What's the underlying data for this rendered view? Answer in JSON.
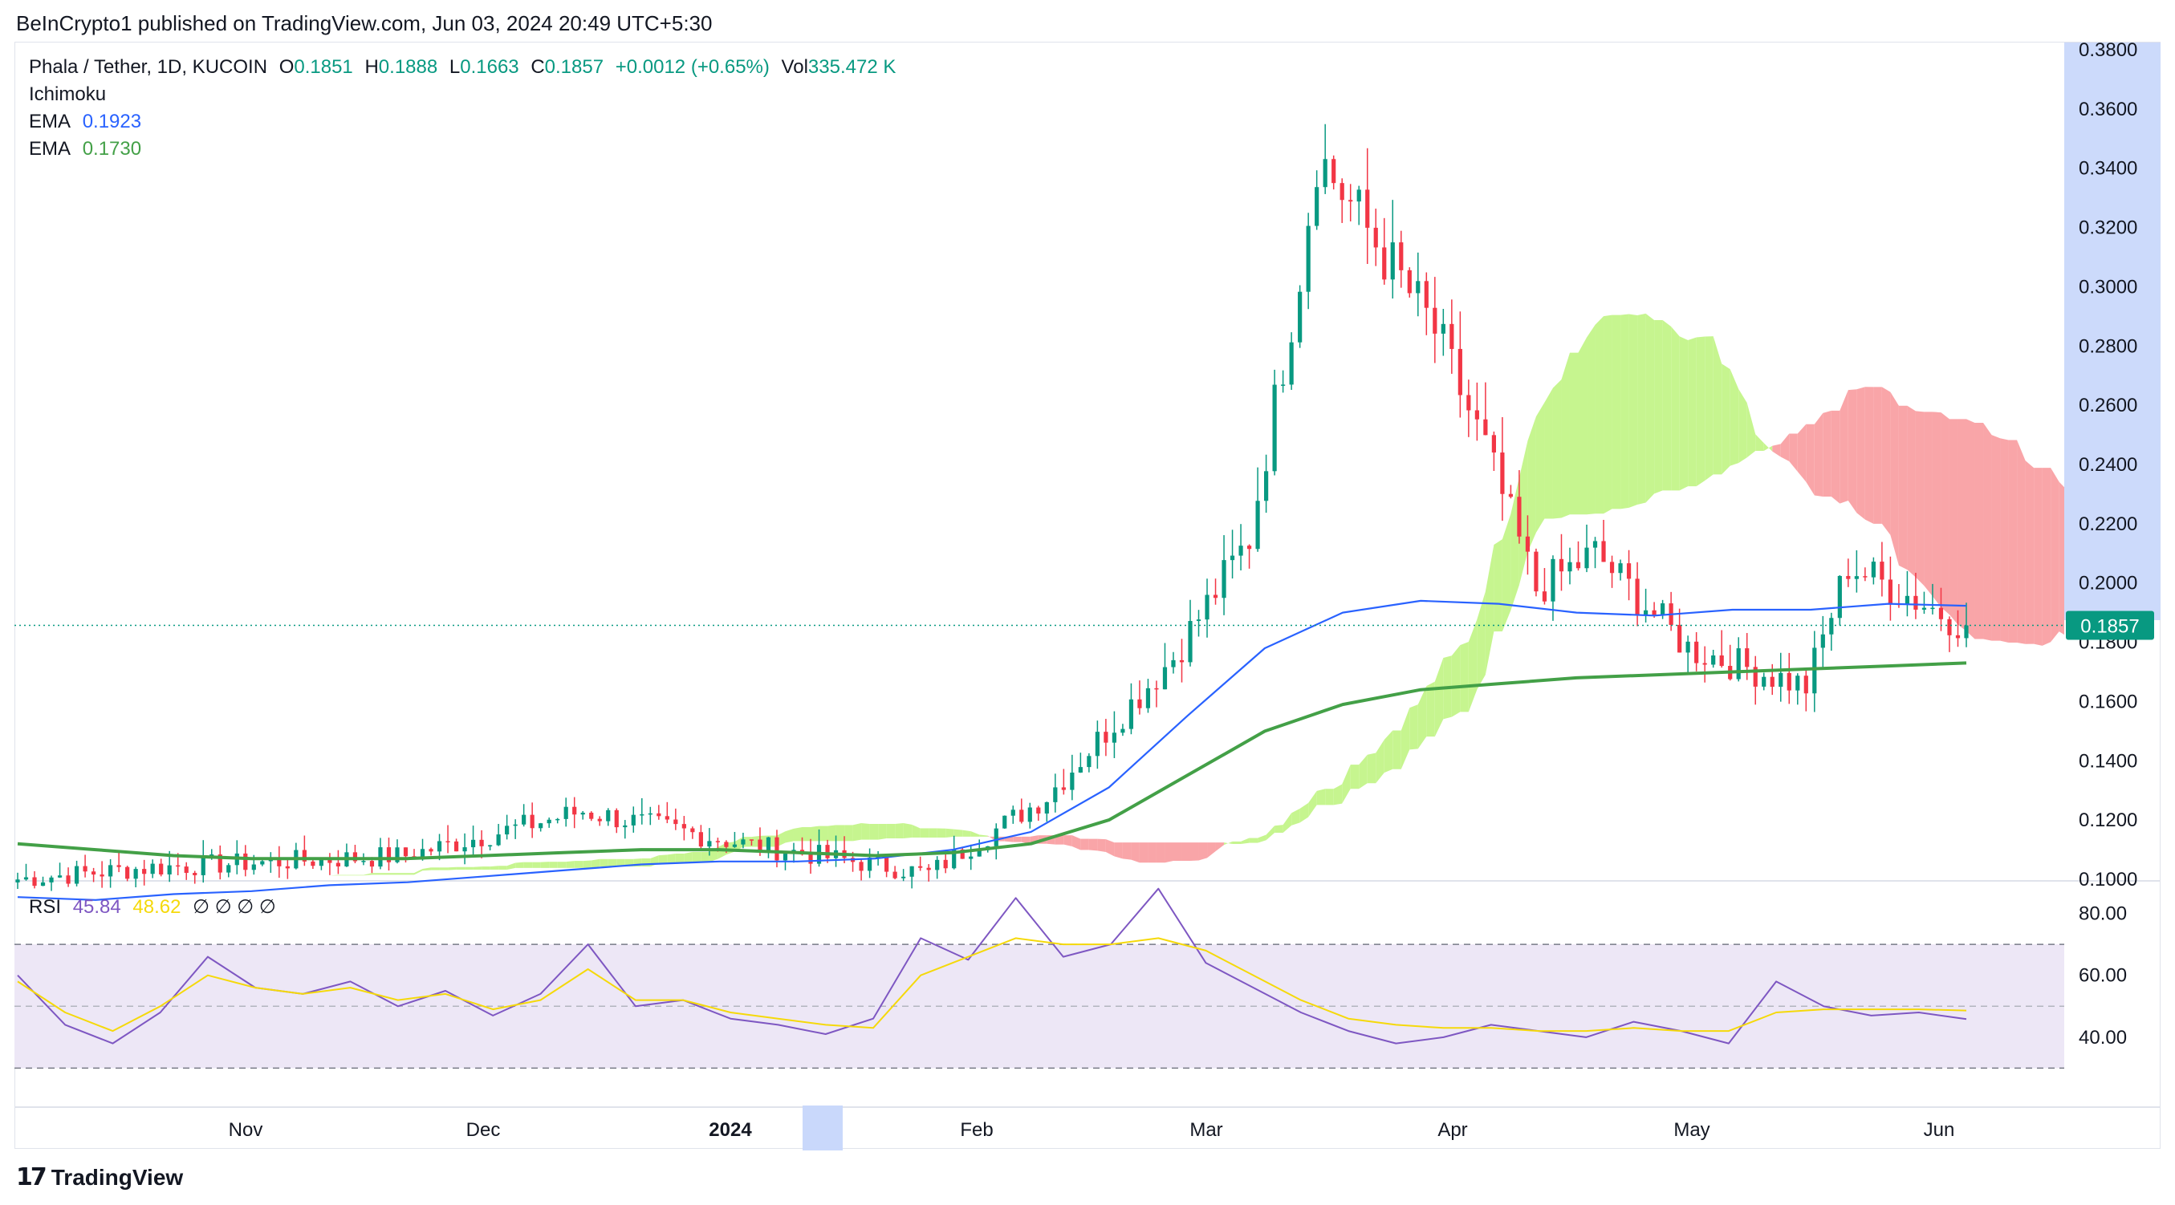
{
  "publish": {
    "text": "BeInCrypto1 published on TradingView.com, Jun 03, 2024 20:49 UTC+5:30"
  },
  "legend": {
    "symbol": "Phala / Tether, 1D, KUCOIN",
    "o_label": "O",
    "o": "0.1851",
    "h_label": "H",
    "h": "0.1888",
    "l_label": "L",
    "l": "0.1663",
    "c_label": "C",
    "c": "0.1857",
    "change": "+0.0012 (+0.65%)",
    "vol_label": "Vol",
    "vol": "335.472 K",
    "ichimoku": "Ichimoku",
    "ema1_label": "EMA",
    "ema1": "0.1923",
    "ema2_label": "EMA",
    "ema2": "0.1730"
  },
  "rsi_legend": {
    "label": "RSI",
    "rsi": "45.84",
    "ma": "48.62",
    "na": "∅ ∅ ∅ ∅"
  },
  "footer": {
    "brand": "TradingView"
  },
  "colors": {
    "up": "#089981",
    "down": "#f23645",
    "ema1": "#2962ff",
    "ema2": "#43a047",
    "cloud_bull": "#c6f58f",
    "cloud_bear": "#f9a5a8",
    "rsi": "#7e57c2",
    "rsi_ma": "#f5d90a",
    "rsi_band": "#ede7f6",
    "price_tag": "#089981",
    "axis_highlight": "#c9d8fb"
  },
  "chart_data": [
    {
      "type": "candlestick",
      "title": "Phala / Tether, 1D, KUCOIN",
      "ylim": [
        0.1,
        0.38
      ],
      "y_ticks": [
        "0.3800",
        "0.3600",
        "0.3400",
        "0.3200",
        "0.3000",
        "0.2800",
        "0.2600",
        "0.2400",
        "0.2200",
        "0.2000",
        "0.1800",
        "0.1600",
        "0.1400",
        "0.1200",
        "0.1000"
      ],
      "x_labels": [
        "Nov",
        "Dec",
        "2024",
        "Feb",
        "Mar",
        "Apr",
        "May",
        "Jun"
      ],
      "last_price": "0.1857",
      "series": [
        {
          "name": "EMA",
          "values_weekly": [
            0.094,
            0.093,
            0.095,
            0.096,
            0.098,
            0.099,
            0.101,
            0.103,
            0.105,
            0.106,
            0.106,
            0.107,
            0.11,
            0.116,
            0.131,
            0.155,
            0.178,
            0.19,
            0.194,
            0.193,
            0.19,
            0.189,
            0.191,
            0.191,
            0.193,
            0.1923
          ]
        },
        {
          "name": "EMA",
          "values_weekly": [
            0.112,
            0.11,
            0.108,
            0.107,
            0.107,
            0.107,
            0.108,
            0.109,
            0.11,
            0.11,
            0.109,
            0.108,
            0.109,
            0.112,
            0.12,
            0.135,
            0.15,
            0.159,
            0.164,
            0.166,
            0.168,
            0.169,
            0.17,
            0.171,
            0.172,
            0.173
          ]
        }
      ],
      "ohlc_key_points": [
        {
          "date": "Oct 16",
          "close": 0.1
        },
        {
          "date": "Nov 01",
          "close": 0.104
        },
        {
          "date": "Dec 01",
          "close": 0.108
        },
        {
          "date": "Dec 22",
          "close": 0.123
        },
        {
          "date": "Jan 10",
          "close": 0.112
        },
        {
          "date": "Feb 01",
          "close": 0.102
        },
        {
          "date": "Feb 15",
          "close": 0.128
        },
        {
          "date": "Mar 01",
          "close": 0.175
        },
        {
          "date": "Mar 10",
          "close": 0.215
        },
        {
          "date": "Mar 16",
          "close": 0.305
        },
        {
          "date": "Mar 18",
          "close": 0.345
        },
        {
          "date": "Mar 25",
          "close": 0.315
        },
        {
          "date": "Apr 01",
          "close": 0.285
        },
        {
          "date": "Apr 07",
          "close": 0.245
        },
        {
          "date": "Apr 13",
          "close": 0.198
        },
        {
          "date": "Apr 20",
          "close": 0.21
        },
        {
          "date": "May 01",
          "close": 0.178
        },
        {
          "date": "May 15",
          "close": 0.165
        },
        {
          "date": "May 20",
          "close": 0.206
        },
        {
          "date": "Jun 03",
          "close": 0.1857
        }
      ]
    },
    {
      "type": "line",
      "title": "RSI",
      "ylim": [
        20,
        90
      ],
      "y_ticks": [
        "80.00",
        "60.00",
        "40.00"
      ],
      "bands": [
        70,
        50,
        30
      ],
      "series": [
        {
          "name": "RSI",
          "values_weekly": [
            60,
            44,
            38,
            48,
            66,
            56,
            54,
            58,
            50,
            55,
            47,
            54,
            70,
            50,
            52,
            46,
            44,
            41,
            46,
            72,
            65,
            85,
            66,
            70,
            88,
            64,
            56,
            48,
            42,
            38,
            40,
            44,
            42,
            40,
            45,
            42,
            38,
            58,
            50,
            47,
            48,
            45.84
          ]
        },
        {
          "name": "RSI MA",
          "values_weekly": [
            58,
            48,
            42,
            50,
            60,
            56,
            54,
            56,
            52,
            54,
            49,
            52,
            62,
            52,
            52,
            48,
            46,
            44,
            43,
            60,
            66,
            72,
            70,
            70,
            72,
            68,
            60,
            52,
            46,
            44,
            43,
            43,
            42,
            42,
            43,
            42,
            42,
            48,
            49,
            49,
            49,
            48.62
          ]
        }
      ]
    }
  ]
}
